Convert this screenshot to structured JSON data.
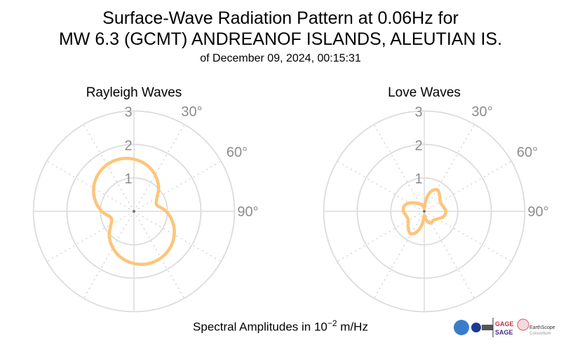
{
  "title_line1": "Surface-Wave Radiation Pattern at 0.06Hz for",
  "title_line2": "MW 6.3 (GCMT) ANDREANOF ISLANDS, ALEUTIAN IS.",
  "subtitle": "of December 09, 2024, 00:15:31",
  "footer": {
    "prefix": "Spectral Amplitudes in 10",
    "exponent": "−2",
    "suffix": " m/Hz"
  },
  "logos": {
    "nsf": "NSF",
    "gage": "GAGE",
    "sage": "SAGE",
    "earthscope": "EarthScope",
    "consortium": "Consortium"
  },
  "chart_data": [
    {
      "type": "polar-line",
      "title": "Rayleigh Waves",
      "radial_ticks": [
        "1",
        "2",
        "3"
      ],
      "radial_range": [
        0,
        3
      ],
      "angular_ticks": [
        "30°",
        "60°",
        "90°"
      ],
      "line_color": "#fdc57a",
      "grid": true,
      "theta_deg": [
        0,
        15,
        30,
        45,
        60,
        75,
        90,
        105,
        120,
        135,
        150,
        165,
        180,
        195,
        210,
        225,
        240,
        255,
        270,
        285,
        300,
        315,
        330,
        345
      ],
      "r": [
        1.56,
        1.44,
        1.26,
        1.04,
        0.79,
        0.71,
        0.96,
        1.19,
        1.39,
        1.53,
        1.61,
        1.62,
        1.56,
        1.44,
        1.26,
        1.04,
        0.79,
        0.71,
        0.96,
        1.19,
        1.39,
        1.53,
        1.61,
        1.62
      ]
    },
    {
      "type": "polar-line",
      "title": "Love Waves",
      "radial_ticks": [
        "1",
        "2",
        "3"
      ],
      "radial_range": [
        0,
        3
      ],
      "angular_ticks": [
        "30°",
        "60°",
        "90°"
      ],
      "line_color": "#fdc57a",
      "grid": true,
      "theta_deg": [
        0,
        15,
        30,
        45,
        60,
        75,
        90,
        105,
        120,
        135,
        150,
        165,
        180,
        195,
        210,
        225,
        240,
        255,
        270,
        285,
        300,
        315,
        330,
        345
      ],
      "r": [
        0.1,
        0.55,
        0.75,
        0.65,
        0.55,
        0.58,
        0.64,
        0.6,
        0.45,
        0.38,
        0.4,
        0.3,
        0.12,
        0.55,
        0.78,
        0.68,
        0.55,
        0.55,
        0.62,
        0.62,
        0.5,
        0.35,
        0.25,
        0.2
      ]
    }
  ]
}
